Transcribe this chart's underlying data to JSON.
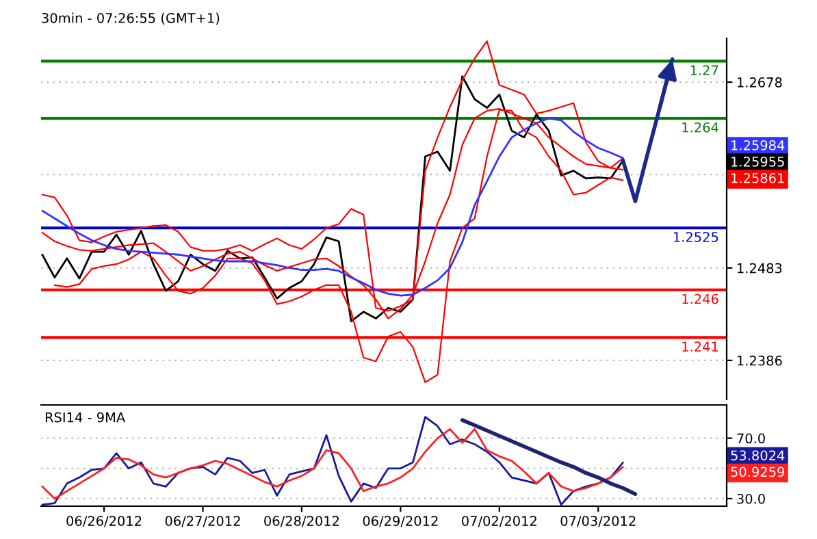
{
  "chart_data": [
    {
      "type": "line",
      "title": "30min - 07:26:55 (GMT+1)",
      "categories": [
        null,
        null,
        null,
        null,
        null,
        null,
        null,
        null,
        null,
        null,
        null,
        null,
        null,
        null,
        null,
        null,
        null,
        null,
        null,
        null,
        null,
        null,
        null,
        null,
        null,
        null,
        null,
        null,
        null,
        null,
        null,
        null,
        null,
        null,
        null,
        null,
        null,
        null,
        null,
        null,
        null,
        null,
        null,
        null,
        null,
        null,
        null,
        null,
        null,
        null,
        null,
        null,
        null,
        null,
        null,
        null
      ],
      "annotations": [
        "1.25984",
        "1.25955",
        "1.25861"
      ],
      "ylim": [
        1.2345,
        1.2724
      ],
      "yticks": [
        1.2386,
        1.2483,
        {
          "value": 1.2581,
          "label": null
        },
        1.2678
      ],
      "tick_labels": "y",
      "grid": "y",
      "series": [
        {
          "color": "#000000",
          "values": [
            1.2497,
            1.2473,
            1.2493,
            1.2472,
            1.25,
            1.25,
            1.2518,
            1.2497,
            1.2522,
            1.2487,
            1.2459,
            1.2469,
            1.2497,
            1.2487,
            1.248,
            1.2501,
            1.2493,
            1.2494,
            1.2473,
            1.2451,
            1.2462,
            1.2469,
            1.2487,
            1.2515,
            1.2511,
            1.2427,
            1.2437,
            1.243,
            1.2441,
            1.2437,
            1.245,
            1.26,
            1.2605,
            1.2585,
            1.2684,
            1.266,
            1.2651,
            1.2665,
            1.2627,
            1.262,
            1.2644,
            1.2627,
            1.258,
            1.2585,
            1.2577,
            1.2578,
            1.2577,
            1.25955,
            null,
            null,
            null,
            null,
            null,
            null,
            null,
            null
          ]
        },
        {
          "color": "#ff0000",
          "values": [
            1.256,
            1.2557,
            1.2538,
            1.2512,
            1.251,
            1.2516,
            1.2521,
            1.2523,
            1.2525,
            1.2527,
            1.2528,
            1.2521,
            1.2505,
            1.2501,
            1.2501,
            1.2503,
            1.2507,
            1.2501,
            1.2508,
            1.2514,
            1.2507,
            1.2503,
            1.2513,
            1.2525,
            1.2529,
            1.2545,
            1.2539,
            1.2441,
            1.2438,
            1.2443,
            1.245,
            1.2585,
            1.262,
            1.2652,
            1.268,
            1.2703,
            1.2721,
            1.2675,
            1.267,
            1.2665,
            1.2645,
            1.2648,
            1.2652,
            1.2656,
            1.2615,
            1.2595,
            1.2588,
            1.2598,
            null,
            null,
            null,
            null,
            null,
            null,
            null,
            null
          ]
        },
        {
          "color": "#ff0000",
          "values": [
            1.252,
            1.2511,
            1.2506,
            1.2502,
            1.2501,
            1.2503,
            1.2505,
            1.2507,
            1.2508,
            1.2509,
            1.25,
            1.249,
            1.248,
            1.2485,
            1.2492,
            1.2498,
            1.25,
            1.2493,
            1.2486,
            1.248,
            1.2484,
            1.2488,
            1.2492,
            1.2493,
            1.2485,
            1.2474,
            1.2465,
            1.245,
            1.243,
            1.244,
            1.2455,
            1.249,
            1.253,
            1.256,
            1.2612,
            1.264,
            1.2648,
            1.265,
            1.2645,
            1.264,
            1.2635,
            1.262,
            1.261,
            1.26,
            1.2592,
            1.259,
            1.2588,
            1.25861,
            null,
            null,
            null,
            null,
            null,
            null,
            null,
            null
          ]
        },
        {
          "color": "#ff0000",
          "values": [
            null,
            1.2465,
            1.2463,
            1.2466,
            1.2482,
            1.2485,
            1.2487,
            1.2492,
            1.25,
            1.2493,
            1.2475,
            1.2459,
            1.2456,
            1.2462,
            1.2475,
            1.2493,
            1.2493,
            1.2488,
            1.247,
            1.2445,
            1.2448,
            1.2453,
            1.246,
            1.2465,
            1.2465,
            1.2437,
            1.2389,
            1.2385,
            1.2411,
            1.2416,
            1.24,
            1.2363,
            1.2371,
            1.249,
            1.2525,
            1.2535,
            1.26,
            1.2649,
            1.2648,
            1.2627,
            1.262,
            1.26,
            1.2585,
            1.256,
            1.2562,
            1.257,
            1.2578,
            1.2575,
            null,
            null,
            null,
            null,
            null,
            null,
            null,
            null
          ]
        },
        {
          "color": "#3333ff",
          "values": [
            1.2543,
            1.2535,
            1.2527,
            1.2519,
            1.2512,
            1.2507,
            1.2503,
            1.2501,
            1.25,
            1.2499,
            1.2498,
            1.2497,
            1.2495,
            1.2493,
            1.2491,
            1.249,
            1.249,
            1.249,
            1.2488,
            1.2486,
            1.2483,
            1.2481,
            1.2481,
            1.2482,
            1.248,
            1.2473,
            1.2467,
            1.246,
            1.2456,
            1.2454,
            1.2455,
            1.2462,
            1.247,
            1.2483,
            1.251,
            1.2549,
            1.2574,
            1.26,
            1.262,
            1.2628,
            1.2635,
            1.264,
            1.2638,
            1.2626,
            1.2617,
            1.2609,
            1.2604,
            1.25984,
            null,
            null,
            null,
            null,
            null,
            null,
            null,
            null
          ]
        },
        {
          "color": "#1a2a8c",
          "values": [
            null,
            null,
            null,
            null,
            null,
            null,
            null,
            null,
            null,
            null,
            null,
            null,
            null,
            null,
            null,
            null,
            null,
            null,
            null,
            null,
            null,
            null,
            null,
            null,
            null,
            null,
            null,
            null,
            null,
            null,
            null,
            null,
            null,
            null,
            null,
            null,
            null,
            null,
            null,
            null,
            null,
            null,
            null,
            null,
            null,
            null,
            null,
            1.2596,
            1.2553,
            1.2603,
            1.2652,
            1.2702,
            null,
            null,
            null,
            null
          ]
        }
      ],
      "ref_lines": [
        {
          "axis": "y",
          "value": 1.27,
          "label": "1.27",
          "color": "#008000"
        },
        {
          "axis": "y",
          "value": 1.264,
          "label": "1.264",
          "color": "#008000"
        },
        {
          "axis": "y",
          "value": 1.2525,
          "label": "1.2525",
          "color": "#0000cc"
        },
        {
          "axis": "y",
          "value": 1.246,
          "label": "1.246",
          "color": "#ff0000"
        },
        {
          "axis": "y",
          "value": 1.241,
          "label": "1.241",
          "color": "#ff0000"
        }
      ]
    },
    {
      "type": "line",
      "title": "RSI14 - 9MA",
      "categories": [
        null,
        null,
        null,
        null,
        null,
        "06/26/2012",
        null,
        null,
        null,
        null,
        null,
        null,
        null,
        "06/27/2012",
        null,
        null,
        null,
        null,
        null,
        null,
        null,
        "06/28/2012",
        null,
        null,
        null,
        null,
        null,
        null,
        null,
        "06/29/2012",
        null,
        null,
        null,
        null,
        null,
        null,
        null,
        "07/02/2012",
        null,
        null,
        null,
        null,
        null,
        null,
        null,
        "07/03/2012",
        null,
        null,
        null,
        null,
        null,
        null,
        null,
        null,
        null,
        null
      ],
      "annotations": [
        "53.8024",
        "50.9259"
      ],
      "ylim": [
        25,
        92
      ],
      "yticks": [
        {
          "value": 30,
          "label": "30.0"
        },
        {
          "value": 50,
          "label": null
        },
        {
          "value": 70,
          "label": "70.0"
        }
      ],
      "grid": "y",
      "series": [
        {
          "color": "#1a1a99",
          "values": [
            26,
            27,
            40,
            44,
            49,
            50,
            60,
            50,
            54,
            40,
            38,
            47,
            50,
            51,
            46,
            57,
            55,
            47,
            49,
            32,
            46,
            48,
            50,
            72,
            45,
            28,
            40,
            37,
            50,
            50,
            54,
            84,
            78,
            66,
            69,
            66,
            61,
            54,
            44,
            42,
            40,
            47,
            26,
            35,
            38,
            40,
            44,
            53.8024,
            null,
            null,
            null,
            null,
            null,
            null,
            null,
            null
          ]
        },
        {
          "color": "#ff2020",
          "values": [
            38,
            30,
            35,
            40,
            45,
            50,
            57,
            56,
            52,
            46,
            44,
            47,
            50,
            52,
            55,
            53,
            49,
            45,
            41,
            38,
            42,
            45,
            50,
            62,
            60,
            50,
            35,
            38,
            40,
            44,
            50,
            61,
            70,
            76,
            67,
            76,
            62,
            58,
            55,
            48,
            40,
            47,
            38,
            35,
            37,
            40,
            44,
            50.9259,
            null,
            null,
            null,
            null,
            null,
            null,
            null,
            null
          ]
        },
        {
          "color": "#1f2370",
          "values": [
            null,
            null,
            null,
            null,
            null,
            null,
            null,
            null,
            null,
            null,
            null,
            null,
            null,
            null,
            null,
            null,
            null,
            null,
            null,
            null,
            null,
            null,
            null,
            null,
            null,
            null,
            null,
            null,
            null,
            null,
            null,
            null,
            null,
            null,
            82,
            78.5,
            75,
            71.5,
            68,
            64.5,
            61,
            57.5,
            54,
            51,
            47,
            44,
            40,
            37,
            33,
            null,
            null,
            null,
            null,
            null,
            null,
            null
          ]
        }
      ]
    }
  ]
}
